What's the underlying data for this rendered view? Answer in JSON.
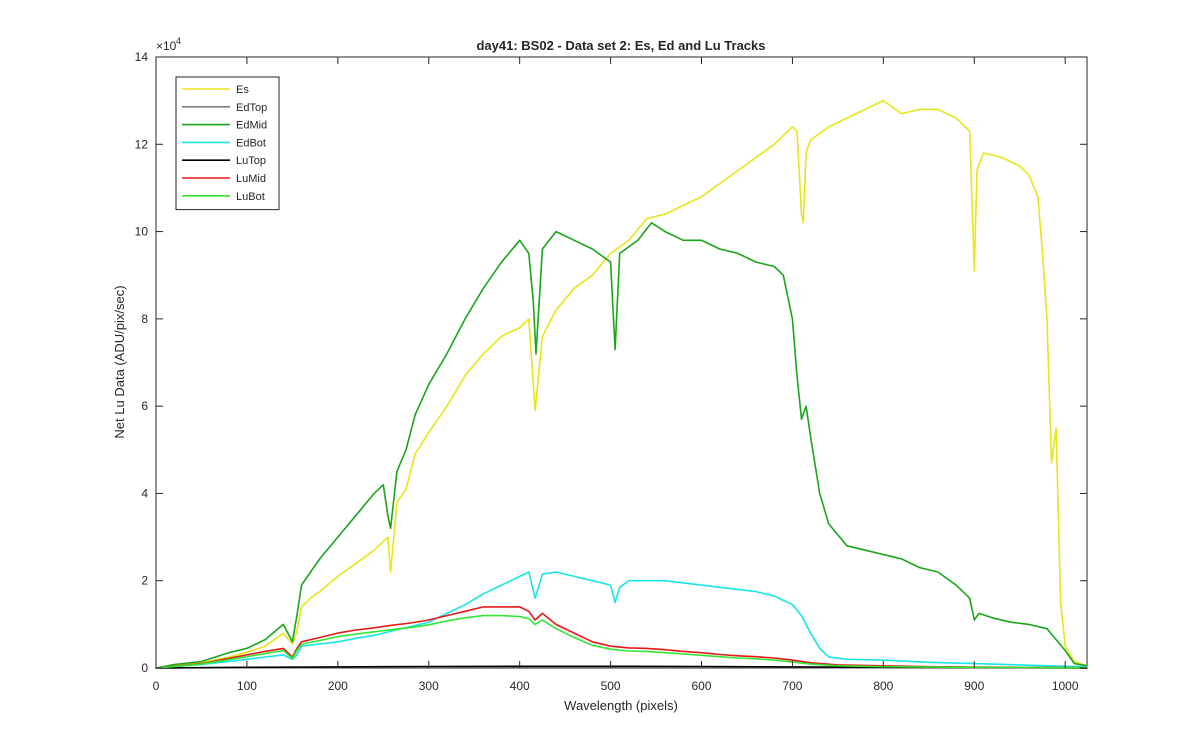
{
  "chart_data": {
    "type": "line",
    "title": "day41: BS02 - Data set 2: Es, Ed and Lu Tracks",
    "xlabel": "Wavelength (pixels)",
    "ylabel": "Net Lu Data (ADU/pix/sec)",
    "exponent_base": "×10",
    "exponent_power": "4",
    "xlim": [
      0,
      1024
    ],
    "ylim": [
      0,
      140000
    ],
    "yscale": 10000,
    "xticks": [
      0,
      100,
      200,
      300,
      400,
      500,
      600,
      700,
      800,
      900,
      1000
    ],
    "xtick_labels": [
      "0",
      "100",
      "200",
      "300",
      "400",
      "500",
      "600",
      "700",
      "800",
      "900",
      "1000"
    ],
    "yticks": [
      0,
      20000,
      40000,
      60000,
      80000,
      100000,
      120000,
      140000
    ],
    "ytick_labels": [
      "0",
      "2",
      "4",
      "6",
      "8",
      "10",
      "12",
      "14"
    ],
    "legend_position": "top-left",
    "grid": false,
    "series": [
      {
        "name": "Es",
        "color": "#e6e619",
        "x": [
          0,
          20,
          50,
          80,
          100,
          120,
          140,
          150,
          155,
          160,
          170,
          180,
          200,
          220,
          240,
          255,
          258,
          265,
          275,
          285,
          300,
          320,
          340,
          360,
          380,
          400,
          410,
          417,
          425,
          440,
          460,
          480,
          500,
          520,
          540,
          560,
          580,
          600,
          620,
          640,
          660,
          680,
          700,
          705,
          710,
          712,
          715,
          720,
          740,
          760,
          780,
          800,
          820,
          840,
          860,
          880,
          895,
          900,
          903,
          910,
          930,
          950,
          960,
          970,
          975,
          980,
          985,
          990,
          995,
          1000,
          1010,
          1024
        ],
        "y": [
          0,
          600,
          1200,
          2500,
          3600,
          5000,
          8000,
          5500,
          8500,
          14000,
          16000,
          17500,
          21000,
          24000,
          27000,
          30000,
          22000,
          38000,
          41000,
          49000,
          54000,
          60000,
          67000,
          72000,
          76000,
          78000,
          80000,
          59000,
          76000,
          82000,
          87000,
          90000,
          95000,
          98000,
          103000,
          104000,
          106000,
          108000,
          111000,
          114000,
          117000,
          120000,
          124000,
          123000,
          104000,
          102000,
          118000,
          121000,
          124000,
          126000,
          128000,
          130000,
          127000,
          128000,
          128000,
          126000,
          123000,
          91000,
          114000,
          118000,
          117000,
          115000,
          113000,
          108000,
          95000,
          80000,
          47000,
          55000,
          15000,
          5000,
          1500,
          500
        ]
      },
      {
        "name": "EdTop",
        "color": "#808080",
        "x": [
          0,
          100,
          200,
          300,
          400,
          500,
          600,
          700,
          800,
          900,
          1000,
          1024
        ],
        "y": [
          0,
          100,
          150,
          180,
          200,
          200,
          180,
          150,
          100,
          60,
          30,
          20
        ]
      },
      {
        "name": "EdMid",
        "color": "#1aa61a",
        "x": [
          0,
          20,
          50,
          80,
          100,
          120,
          140,
          150,
          155,
          160,
          170,
          180,
          200,
          220,
          240,
          250,
          255,
          258,
          265,
          275,
          285,
          300,
          320,
          340,
          360,
          380,
          400,
          410,
          415,
          418,
          425,
          440,
          460,
          480,
          500,
          505,
          510,
          530,
          545,
          560,
          580,
          600,
          620,
          640,
          660,
          680,
          690,
          700,
          705,
          710,
          715,
          720,
          730,
          740,
          760,
          780,
          800,
          820,
          840,
          860,
          880,
          895,
          900,
          905,
          920,
          940,
          960,
          980,
          1000,
          1010,
          1024
        ],
        "y": [
          0,
          800,
          1500,
          3500,
          4500,
          6500,
          10000,
          6000,
          12000,
          19000,
          22000,
          25000,
          30000,
          35000,
          40000,
          42000,
          35000,
          32000,
          45000,
          50000,
          58000,
          65000,
          72000,
          80000,
          87000,
          93000,
          98000,
          95000,
          84000,
          72000,
          96000,
          100000,
          98000,
          96000,
          93000,
          73000,
          95000,
          98000,
          102000,
          100000,
          98000,
          98000,
          96000,
          95000,
          93000,
          92000,
          90000,
          80000,
          67000,
          57000,
          60000,
          53000,
          40000,
          33000,
          28000,
          27000,
          26000,
          25000,
          23000,
          22000,
          19000,
          16000,
          11000,
          12500,
          11500,
          10500,
          10000,
          9000,
          4000,
          1000,
          500
        ]
      },
      {
        "name": "EdBot",
        "color": "#19e6e6",
        "x": [
          0,
          20,
          50,
          80,
          100,
          120,
          140,
          150,
          155,
          160,
          180,
          200,
          220,
          240,
          260,
          280,
          300,
          320,
          340,
          360,
          380,
          400,
          410,
          417,
          425,
          440,
          460,
          480,
          500,
          505,
          510,
          520,
          540,
          560,
          580,
          600,
          620,
          640,
          660,
          680,
          700,
          710,
          720,
          730,
          740,
          760,
          800,
          850,
          900,
          950,
          1000,
          1024
        ],
        "y": [
          0,
          300,
          800,
          1500,
          2000,
          2500,
          3000,
          2000,
          3000,
          5000,
          5500,
          6000,
          6800,
          7500,
          8500,
          9500,
          10500,
          12500,
          14500,
          17000,
          19000,
          21000,
          22000,
          16000,
          21500,
          22000,
          21000,
          20000,
          19000,
          15000,
          18500,
          20000,
          20000,
          20000,
          19500,
          19000,
          18500,
          18000,
          17500,
          16500,
          14500,
          12000,
          8000,
          4500,
          2500,
          2000,
          1800,
          1300,
          1000,
          700,
          400,
          300
        ]
      },
      {
        "name": "LuTop",
        "color": "#000000",
        "x": [
          0,
          100,
          200,
          300,
          400,
          500,
          600,
          700,
          800,
          900,
          1000,
          1024
        ],
        "y": [
          0,
          150,
          250,
          350,
          400,
          380,
          350,
          250,
          150,
          100,
          50,
          30
        ]
      },
      {
        "name": "LuMid",
        "color": "#e61919",
        "x": [
          0,
          20,
          50,
          80,
          100,
          120,
          140,
          150,
          155,
          160,
          180,
          200,
          220,
          240,
          260,
          280,
          300,
          320,
          340,
          360,
          380,
          400,
          410,
          417,
          425,
          440,
          460,
          480,
          500,
          520,
          540,
          560,
          580,
          600,
          620,
          640,
          660,
          680,
          700,
          720,
          750,
          800,
          850,
          900,
          1000,
          1024
        ],
        "y": [
          0,
          400,
          1000,
          2200,
          3000,
          3800,
          4500,
          2500,
          4500,
          6000,
          7000,
          8000,
          8700,
          9200,
          9800,
          10300,
          11000,
          12000,
          13000,
          14000,
          14000,
          14000,
          13000,
          11000,
          12500,
          10000,
          8000,
          6000,
          5000,
          4600,
          4500,
          4200,
          3800,
          3500,
          3100,
          2800,
          2600,
          2300,
          1800,
          1200,
          700,
          500,
          300,
          200,
          100,
          80
        ]
      },
      {
        "name": "LuBot",
        "color": "#33e633",
        "x": [
          0,
          20,
          50,
          80,
          100,
          120,
          140,
          150,
          155,
          160,
          180,
          200,
          220,
          240,
          260,
          280,
          300,
          320,
          340,
          360,
          380,
          400,
          410,
          417,
          425,
          440,
          460,
          480,
          500,
          520,
          540,
          560,
          580,
          600,
          620,
          640,
          660,
          680,
          700,
          720,
          750,
          800,
          850,
          900,
          1000,
          1024
        ],
        "y": [
          0,
          350,
          900,
          1900,
          2600,
          3300,
          4000,
          2200,
          4000,
          5400,
          6300,
          7200,
          7800,
          8300,
          8800,
          9300,
          9900,
          10800,
          11500,
          12000,
          12000,
          11800,
          11300,
          10000,
          11000,
          9000,
          7000,
          5200,
          4300,
          3900,
          3800,
          3500,
          3200,
          2900,
          2600,
          2300,
          2100,
          1800,
          1400,
          900,
          500,
          300,
          200,
          150,
          80,
          60
        ]
      }
    ]
  }
}
